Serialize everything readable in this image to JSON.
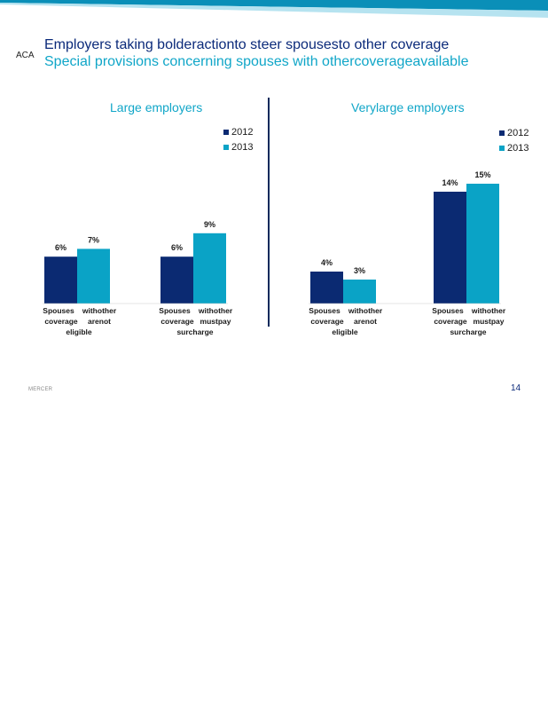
{
  "slide": {
    "tag": "ACA",
    "title": "Employers  taking  bolderactionto  steer  spousesto  other  coverage",
    "subtitle": "Special  provisions  concerning  spouses  with  othercoverageavailable",
    "footer_brand": "MERCER",
    "page_number": "14"
  },
  "colors": {
    "series_2012": "#0b2a72",
    "series_2013": "#0aa3c6",
    "title_primary": "#0b2a7a",
    "title_accent": "#10a6c8",
    "banner_dark": "#0a8fb8",
    "banner_light": "#b6e3f0"
  },
  "chart_data": [
    {
      "type": "bar",
      "title": "Large employers",
      "legend": [
        "2012",
        "2013"
      ],
      "legend_position": "top-right",
      "categories": [
        [
          "Spouses",
          "withother",
          "coverage",
          "arenot",
          "eligible"
        ],
        [
          "Spouses",
          "withother",
          "coverage",
          "mustpay",
          "surcharge"
        ]
      ],
      "series": [
        {
          "name": "2012",
          "values": [
            6,
            6
          ],
          "labels": [
            "6%",
            "6%"
          ]
        },
        {
          "name": "2013",
          "values": [
            7,
            9
          ],
          "labels": [
            "7%",
            "9%"
          ]
        }
      ],
      "grid": false
    },
    {
      "type": "bar",
      "title": "Verylarge  employers",
      "legend": [
        "2012",
        "2013"
      ],
      "legend_position": "top-right",
      "categories": [
        [
          "Spouses",
          "withother",
          "coverage",
          "arenot",
          "eligible"
        ],
        [
          "Spouses",
          "withother",
          "coverage",
          "mustpay",
          "surcharge"
        ]
      ],
      "series": [
        {
          "name": "2012",
          "values": [
            4,
            14
          ],
          "labels": [
            "4%",
            "14%"
          ]
        },
        {
          "name": "2013",
          "values": [
            3,
            15
          ],
          "labels": [
            "3%",
            "15%"
          ]
        }
      ],
      "grid": false
    }
  ]
}
